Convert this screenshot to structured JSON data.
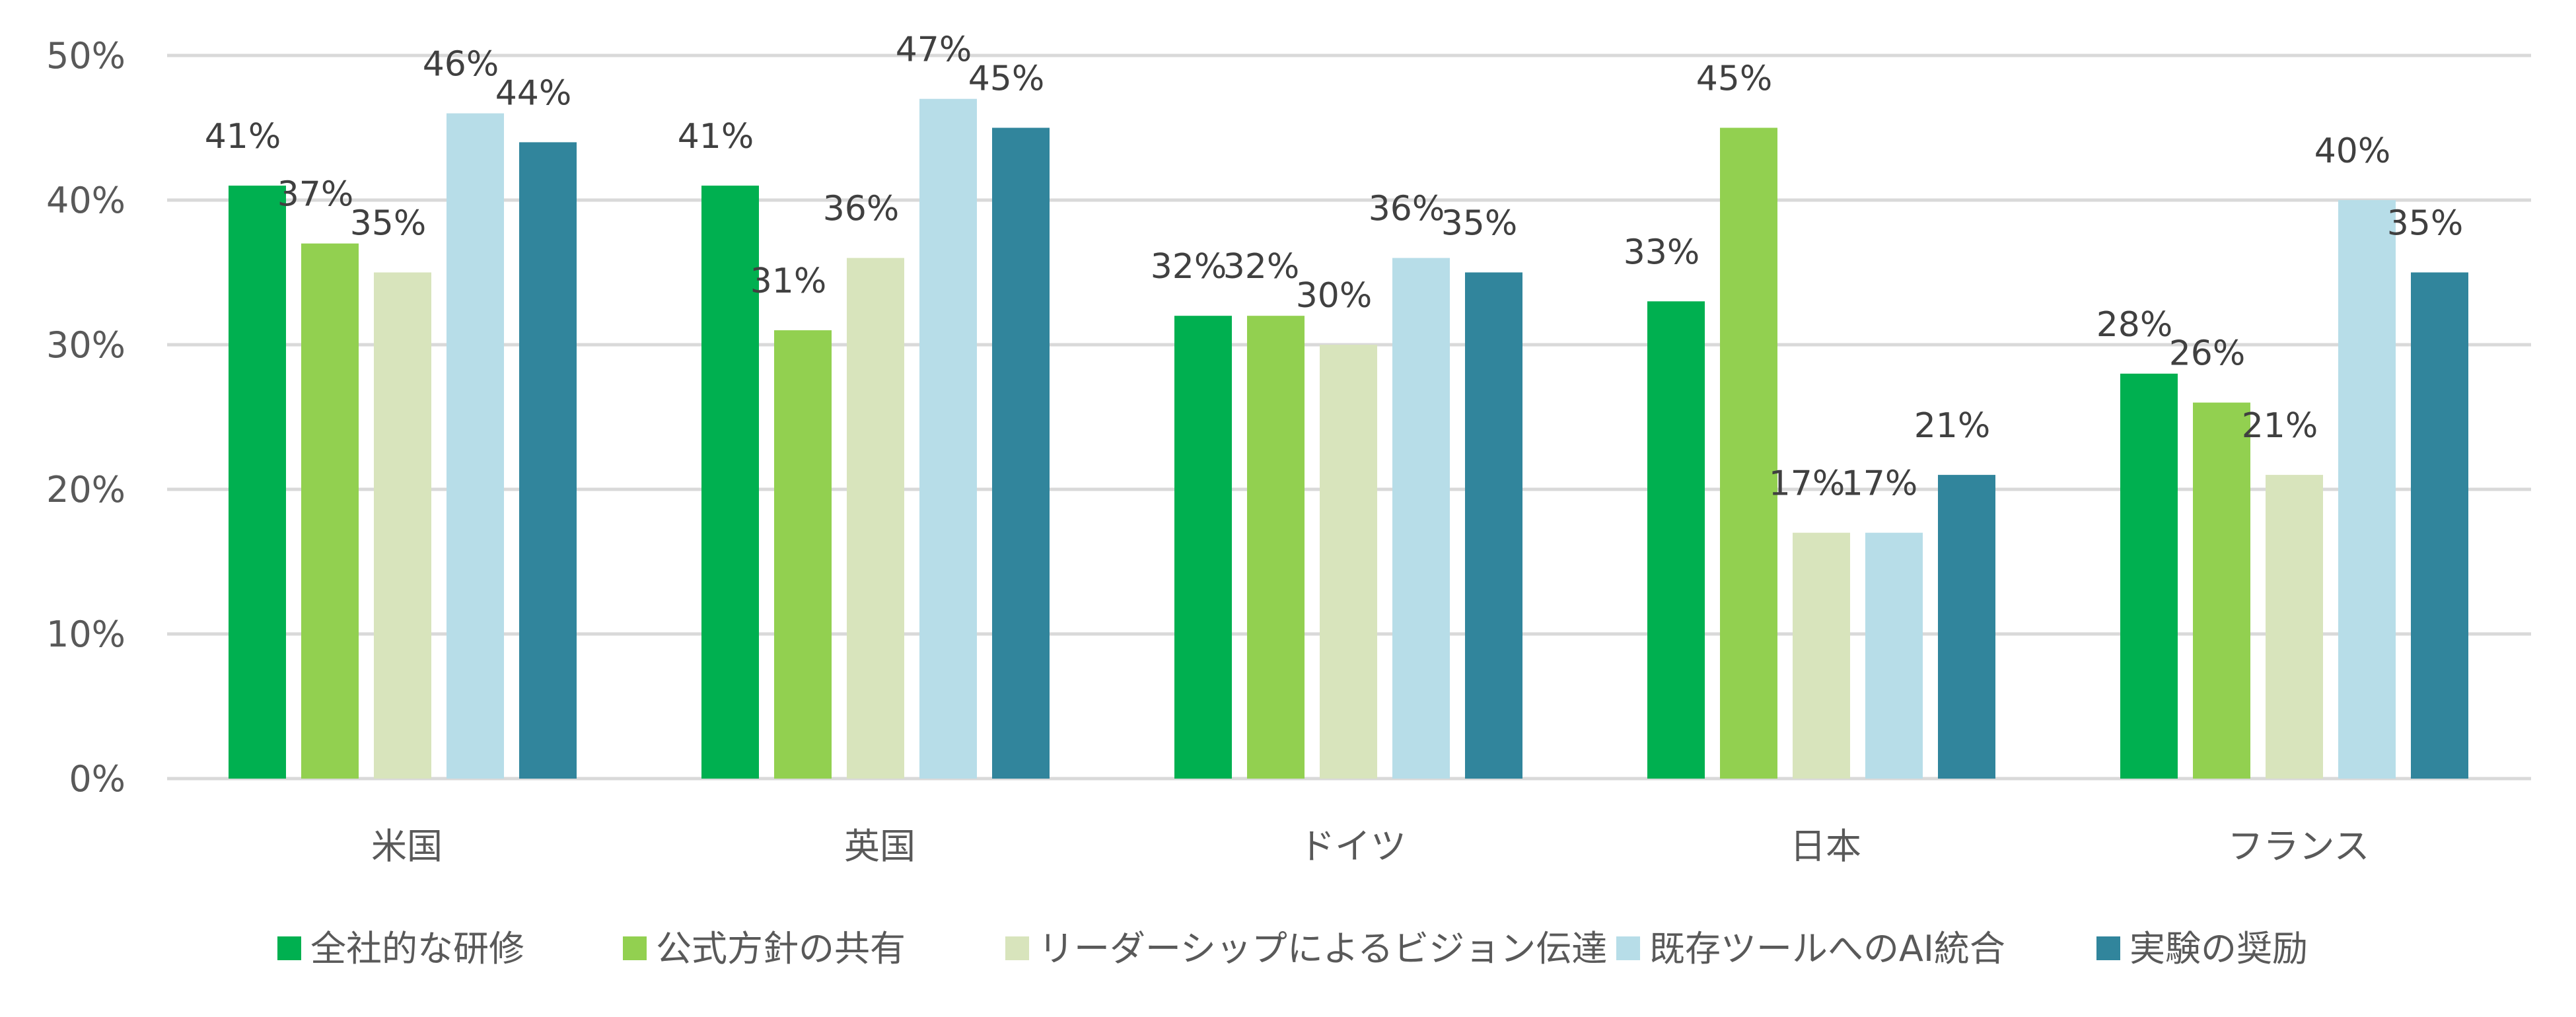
{
  "chart_data": {
    "type": "bar",
    "categories": [
      "米国",
      "英国",
      "ドイツ",
      "日本",
      "フランス"
    ],
    "series": [
      {
        "name": "全社的な研修",
        "values": [
          41,
          41,
          32,
          33,
          28
        ],
        "color": "#00B050"
      },
      {
        "name": "公式方針の共有",
        "values": [
          37,
          31,
          32,
          45,
          26
        ],
        "color": "#92D050"
      },
      {
        "name": "リーダーシップによるビジョン伝達",
        "values": [
          35,
          36,
          30,
          17,
          21
        ],
        "color": "#D8E4BC"
      },
      {
        "name": "既存ツールへのAI統合",
        "values": [
          46,
          47,
          36,
          17,
          40
        ],
        "color": "#B7DDE8"
      },
      {
        "name": "実験の奨励",
        "values": [
          44,
          45,
          35,
          21,
          35
        ],
        "color": "#31859C"
      }
    ],
    "data_labels": [
      [
        "41%",
        "41%",
        "32%",
        "33%",
        "28%"
      ],
      [
        "37%",
        "31%",
        "32%",
        "45%",
        "26%"
      ],
      [
        "35%",
        "36%",
        "30%",
        "17%",
        "21%"
      ],
      [
        "46%",
        "47%",
        "36%",
        "17%",
        "40%"
      ],
      [
        "44%",
        "45%",
        "35%",
        "21%",
        "35%"
      ]
    ],
    "y_ticks": [
      "0%",
      "10%",
      "20%",
      "30%",
      "40%",
      "50%"
    ],
    "y_tick_values": [
      0,
      10,
      20,
      30,
      40,
      50
    ],
    "ylim": [
      0,
      50
    ],
    "title": "",
    "xlabel": "",
    "ylabel": "",
    "grid": true,
    "legend_position": "bottom",
    "gridline_color": "#D9D9D9"
  }
}
